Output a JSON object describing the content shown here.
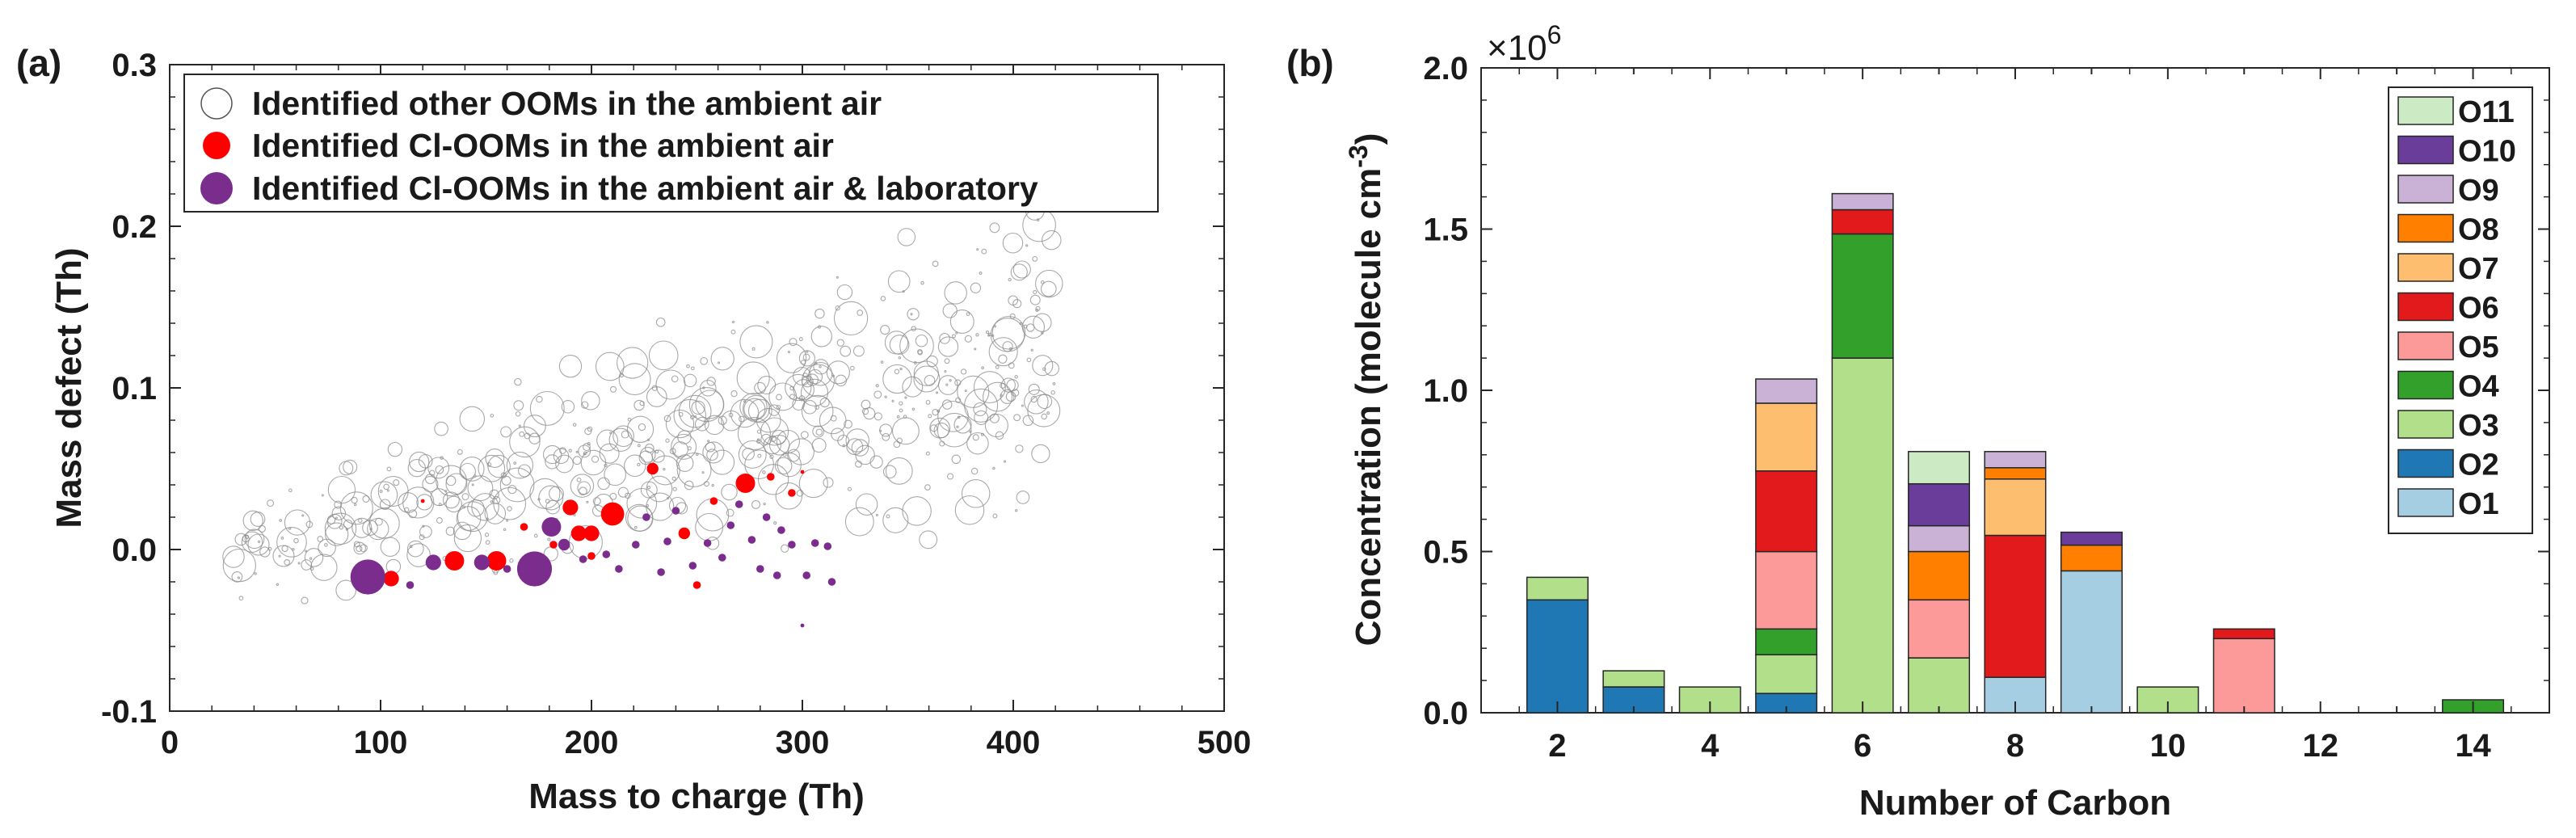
{
  "panel_labels": {
    "a": "(a)",
    "b": "(b)"
  },
  "chart_data": [
    {
      "type": "scatter",
      "xlabel": "Mass to charge (Th)",
      "ylabel": "Mass defect (Th)",
      "xlim": [
        0,
        500
      ],
      "ylim": [
        -0.1,
        0.3
      ],
      "xticks": [
        "0",
        "100",
        "200",
        "300",
        "400",
        "500"
      ],
      "yticks": [
        "-0.1",
        "0.0",
        "0.1",
        "0.2",
        "0.3"
      ],
      "legend": {
        "position": "top-left",
        "entries": [
          "Identified other OOMs in the ambient air",
          "Identified Cl-OOMs in the ambient air",
          "Identified Cl-OOMs in the ambient air & laboratory"
        ]
      },
      "colors": {
        "other": "#8c8c8c",
        "cl_ambient": "#ff0000",
        "cl_lab": "#7b2d8e"
      },
      "series": [
        {
          "name": "Identified Cl-OOMs in the ambient air",
          "points": [
            [
              105,
              -0.018,
              4
            ],
            [
              135,
              -0.007,
              5
            ],
            [
              155,
              -0.007,
              5
            ],
            [
              182,
              0.003,
              2
            ],
            [
              190,
              0.026,
              4
            ],
            [
              194,
              0.01,
              4
            ],
            [
              200,
              0.01,
              4
            ],
            [
              210,
              0.022,
              6
            ],
            [
              200,
              -0.004,
              2
            ],
            [
              229,
              0.05,
              3
            ],
            [
              244,
              0.01,
              3
            ],
            [
              258,
              0.03,
              2
            ],
            [
              273,
              0.041,
              5
            ],
            [
              285,
              0.045,
              2
            ],
            [
              295,
              0.035,
              2
            ],
            [
              250,
              -0.022,
              2
            ],
            [
              168,
              0.014,
              2
            ],
            [
              120,
              0.03,
              1
            ],
            [
              300,
              0.048,
              1
            ]
          ]
        },
        {
          "name": "Identified Cl-OOMs in the ambient air & laboratory",
          "points": [
            [
              94,
              -0.017,
              9
            ],
            [
              125,
              -0.008,
              4
            ],
            [
              148,
              -0.008,
              4
            ],
            [
              173,
              -0.012,
              9
            ],
            [
              181,
              0.014,
              5
            ],
            [
              187,
              0.003,
              3
            ],
            [
              207,
              -0.003,
              2
            ],
            [
              213,
              -0.012,
              2
            ],
            [
              221,
              0.003,
              2
            ],
            [
              233,
              -0.014,
              2
            ],
            [
              236,
              0.005,
              2
            ],
            [
              240,
              0.024,
              2
            ],
            [
              248,
              -0.01,
              2
            ],
            [
              255,
              0.004,
              2
            ],
            [
              262,
              -0.005,
              2
            ],
            [
              266,
              0.015,
              2
            ],
            [
              270,
              0.028,
              2
            ],
            [
              276,
              0.006,
              2
            ],
            [
              280,
              -0.012,
              2
            ],
            [
              283,
              0.02,
              2
            ],
            [
              288,
              -0.016,
              2
            ],
            [
              290,
              0.012,
              2
            ],
            [
              295,
              0.003,
              2
            ],
            [
              302,
              -0.016,
              2
            ],
            [
              306,
              0.004,
              2
            ],
            [
              312,
              0.002,
              2
            ],
            [
              314,
              -0.02,
              2
            ],
            [
              300,
              -0.047,
              1
            ],
            [
              196,
              -0.006,
              2
            ],
            [
              226,
              0.02,
              2
            ],
            [
              160,
              -0.012,
              2
            ],
            [
              114,
              -0.022,
              2
            ]
          ]
        }
      ],
      "other_ooms": {
        "name": "Identified other OOMs in the ambient air",
        "note": "several hundred open grey circles spread from ~30 to ~420 Th, mass defect trending from ~0.0 to ~0.18 Th"
      }
    },
    {
      "type": "bar",
      "stacked": true,
      "xlabel": "Number of Carbon",
      "ylabel": "Concentration (molecule cm^-3)",
      "ylabel_parts": {
        "main": "Concentration  (molecule cm",
        "sup": "-3",
        "close": ")"
      },
      "exponent_label": {
        "base": "×10",
        "sup": "6"
      },
      "xlim": [
        1,
        15
      ],
      "ylim": [
        0,
        2.0
      ],
      "xticks": [
        "2",
        "4",
        "6",
        "8",
        "10",
        "12",
        "14"
      ],
      "yticks": [
        "0.0",
        "0.5",
        "1.0",
        "1.5",
        "2.0"
      ],
      "legend_position": "top-right",
      "categories": [
        "2",
        "3",
        "4",
        "5",
        "6",
        "7",
        "8",
        "9",
        "10",
        "11",
        "12",
        "13",
        "14"
      ],
      "series": [
        {
          "name": "O1",
          "color": "#a6cee3",
          "values": [
            0,
            0,
            0,
            0,
            0,
            0,
            0.11,
            0.44,
            0,
            0,
            0,
            0,
            0
          ]
        },
        {
          "name": "O2",
          "color": "#1f78b4",
          "values": [
            0.35,
            0.08,
            0,
            0.06,
            0,
            0,
            0,
            0,
            0,
            0,
            0,
            0,
            0
          ]
        },
        {
          "name": "O3",
          "color": "#b2df8a",
          "values": [
            0.07,
            0.05,
            0.08,
            0.12,
            1.1,
            0.17,
            0,
            0,
            0.08,
            0,
            0,
            0,
            0
          ]
        },
        {
          "name": "O4",
          "color": "#33a02c",
          "values": [
            0,
            0,
            0,
            0.08,
            0.385,
            0,
            0,
            0,
            0,
            0,
            0,
            0,
            0.04
          ]
        },
        {
          "name": "O5",
          "color": "#fb9a99",
          "values": [
            0,
            0,
            0,
            0.24,
            0,
            0.18,
            0,
            0,
            0,
            0.23,
            0,
            0,
            0
          ]
        },
        {
          "name": "O6",
          "color": "#e31a1c",
          "values": [
            0,
            0,
            0,
            0.25,
            0.075,
            0,
            0.44,
            0,
            0,
            0.03,
            0,
            0,
            0
          ]
        },
        {
          "name": "O7",
          "color": "#fdbf6f",
          "values": [
            0,
            0,
            0,
            0.21,
            0,
            0,
            0.175,
            0,
            0,
            0,
            0,
            0,
            0
          ]
        },
        {
          "name": "O8",
          "color": "#ff7f00",
          "values": [
            0,
            0,
            0,
            0,
            0,
            0.15,
            0.035,
            0.08,
            0,
            0,
            0,
            0,
            0
          ]
        },
        {
          "name": "O9",
          "color": "#cab2d6",
          "values": [
            0,
            0,
            0,
            0.075,
            0.05,
            0.08,
            0.05,
            0,
            0,
            0,
            0,
            0,
            0
          ]
        },
        {
          "name": "O10",
          "color": "#6a3d9a",
          "values": [
            0,
            0,
            0,
            0,
            0,
            0.13,
            0,
            0.04,
            0,
            0,
            0,
            0,
            0
          ]
        },
        {
          "name": "O11",
          "color": "#ccebc5",
          "values": [
            0,
            0,
            0,
            0,
            0,
            0.1,
            0,
            0,
            0,
            0,
            0,
            0,
            0
          ]
        }
      ]
    }
  ]
}
